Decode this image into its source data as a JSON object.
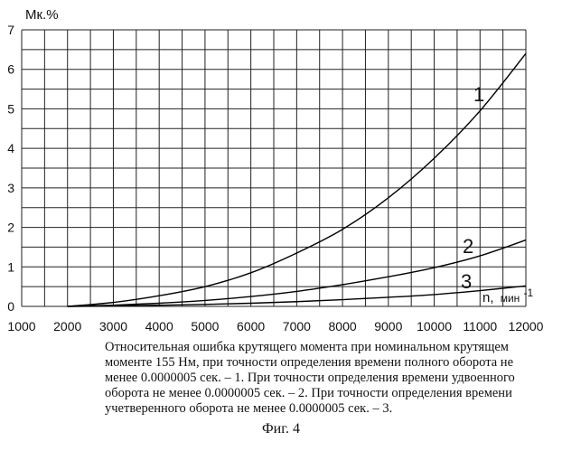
{
  "chart_data": {
    "type": "line",
    "ylabel": "Mк.%",
    "xlabel_main": "n,",
    "xlabel_unit": "мин",
    "xlabel_exp": "-1",
    "xlim": [
      1000,
      12000
    ],
    "ylim": [
      0,
      7
    ],
    "x_ticks": [
      1000,
      2000,
      3000,
      4000,
      5000,
      6000,
      7000,
      8000,
      9000,
      10000,
      11000,
      12000
    ],
    "y_ticks": [
      0,
      1,
      2,
      3,
      4,
      5,
      6,
      7
    ],
    "grid": true,
    "series": [
      {
        "name": "1",
        "x": [
          2000,
          3000,
          4000,
          5000,
          6000,
          7000,
          8000,
          9000,
          10000,
          11000,
          12000
        ],
        "y": [
          0.0,
          0.1,
          0.27,
          0.5,
          0.85,
          1.35,
          1.95,
          2.75,
          3.75,
          4.95,
          6.4
        ]
      },
      {
        "name": "2",
        "x": [
          2000,
          3000,
          4000,
          5000,
          6000,
          7000,
          8000,
          9000,
          10000,
          11000,
          12000
        ],
        "y": [
          0.0,
          0.03,
          0.08,
          0.15,
          0.25,
          0.38,
          0.55,
          0.75,
          0.98,
          1.28,
          1.68
        ]
      },
      {
        "name": "3",
        "x": [
          2000,
          3000,
          4000,
          5000,
          6000,
          7000,
          8000,
          9000,
          10000,
          11000,
          12000
        ],
        "y": [
          0.0,
          0.01,
          0.03,
          0.05,
          0.08,
          0.12,
          0.17,
          0.23,
          0.3,
          0.4,
          0.52
        ]
      }
    ]
  },
  "caption": "Относительная ошибка крутящего момента при номинальном крутящем моменте 155 Нм, при точности определения времени полного оборота не менее 0.0000005 сек. – 1. При точности определения времени удвоенного оборота не менее 0.0000005 сек. – 2. При точности определения времени учетверенного оборота не менее 0.0000005 сек. – 3.",
  "figure_label": "Фиг. 4"
}
